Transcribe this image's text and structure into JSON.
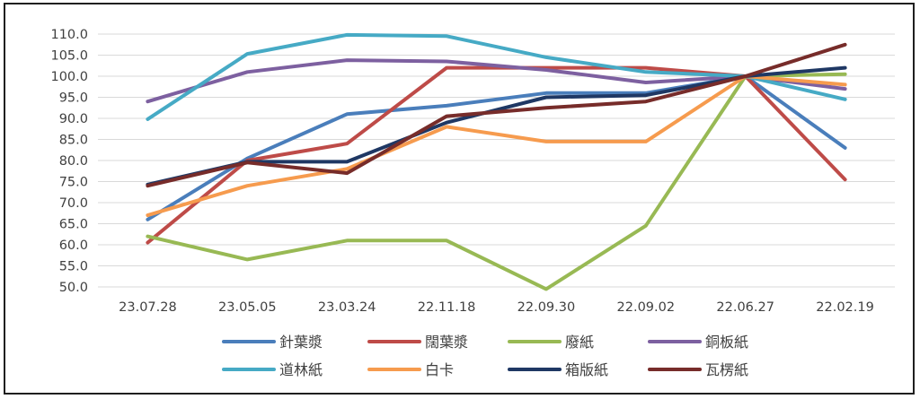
{
  "chart_data": {
    "type": "line",
    "title": "",
    "xlabel": "",
    "ylabel": "",
    "ylim": [
      50,
      110
    ],
    "yticks": [
      "50.0",
      "55.0",
      "60.0",
      "65.0",
      "70.0",
      "75.0",
      "80.0",
      "85.0",
      "90.0",
      "95.0",
      "100.0",
      "105.0",
      "110.0"
    ],
    "categories": [
      "23.07.28",
      "23.05.05",
      "23.03.24",
      "22.11.18",
      "22.09.30",
      "22.09.02",
      "22.06.27",
      "22.02.19"
    ],
    "grid": true,
    "legend_position": "bottom",
    "series": [
      {
        "name": "針葉漿",
        "color": "#4a7ebb",
        "values": [
          66.0,
          80.5,
          91.0,
          93.0,
          96.0,
          96.0,
          100.0,
          83.0
        ]
      },
      {
        "name": "闊葉漿",
        "color": "#be4b48",
        "values": [
          60.5,
          80.0,
          84.0,
          102.0,
          102.0,
          102.0,
          100.0,
          75.5
        ]
      },
      {
        "name": "廢紙",
        "color": "#98b954",
        "values": [
          62.0,
          56.5,
          61.0,
          61.0,
          49.5,
          64.5,
          100.0,
          100.5
        ]
      },
      {
        "name": "銅板紙",
        "color": "#7d60a0",
        "values": [
          94.0,
          101.0,
          103.8,
          103.5,
          101.5,
          98.5,
          100.0,
          97.0
        ]
      },
      {
        "name": "道林紙",
        "color": "#46aac5",
        "values": [
          89.8,
          105.3,
          109.8,
          109.5,
          104.5,
          101.0,
          100.0,
          94.5
        ]
      },
      {
        "name": "白卡",
        "color": "#f69b4e",
        "values": [
          67.0,
          74.0,
          78.0,
          88.0,
          84.5,
          84.5,
          100.0,
          98.0
        ]
      },
      {
        "name": "箱版紙",
        "color": "#1f3864",
        "values": [
          74.3,
          79.7,
          79.7,
          89.0,
          95.0,
          95.5,
          100.0,
          102.0
        ]
      },
      {
        "name": "瓦楞紙",
        "color": "#772c2a",
        "values": [
          74.0,
          79.5,
          77.0,
          90.5,
          92.5,
          94.0,
          100.0,
          107.5
        ]
      }
    ]
  }
}
